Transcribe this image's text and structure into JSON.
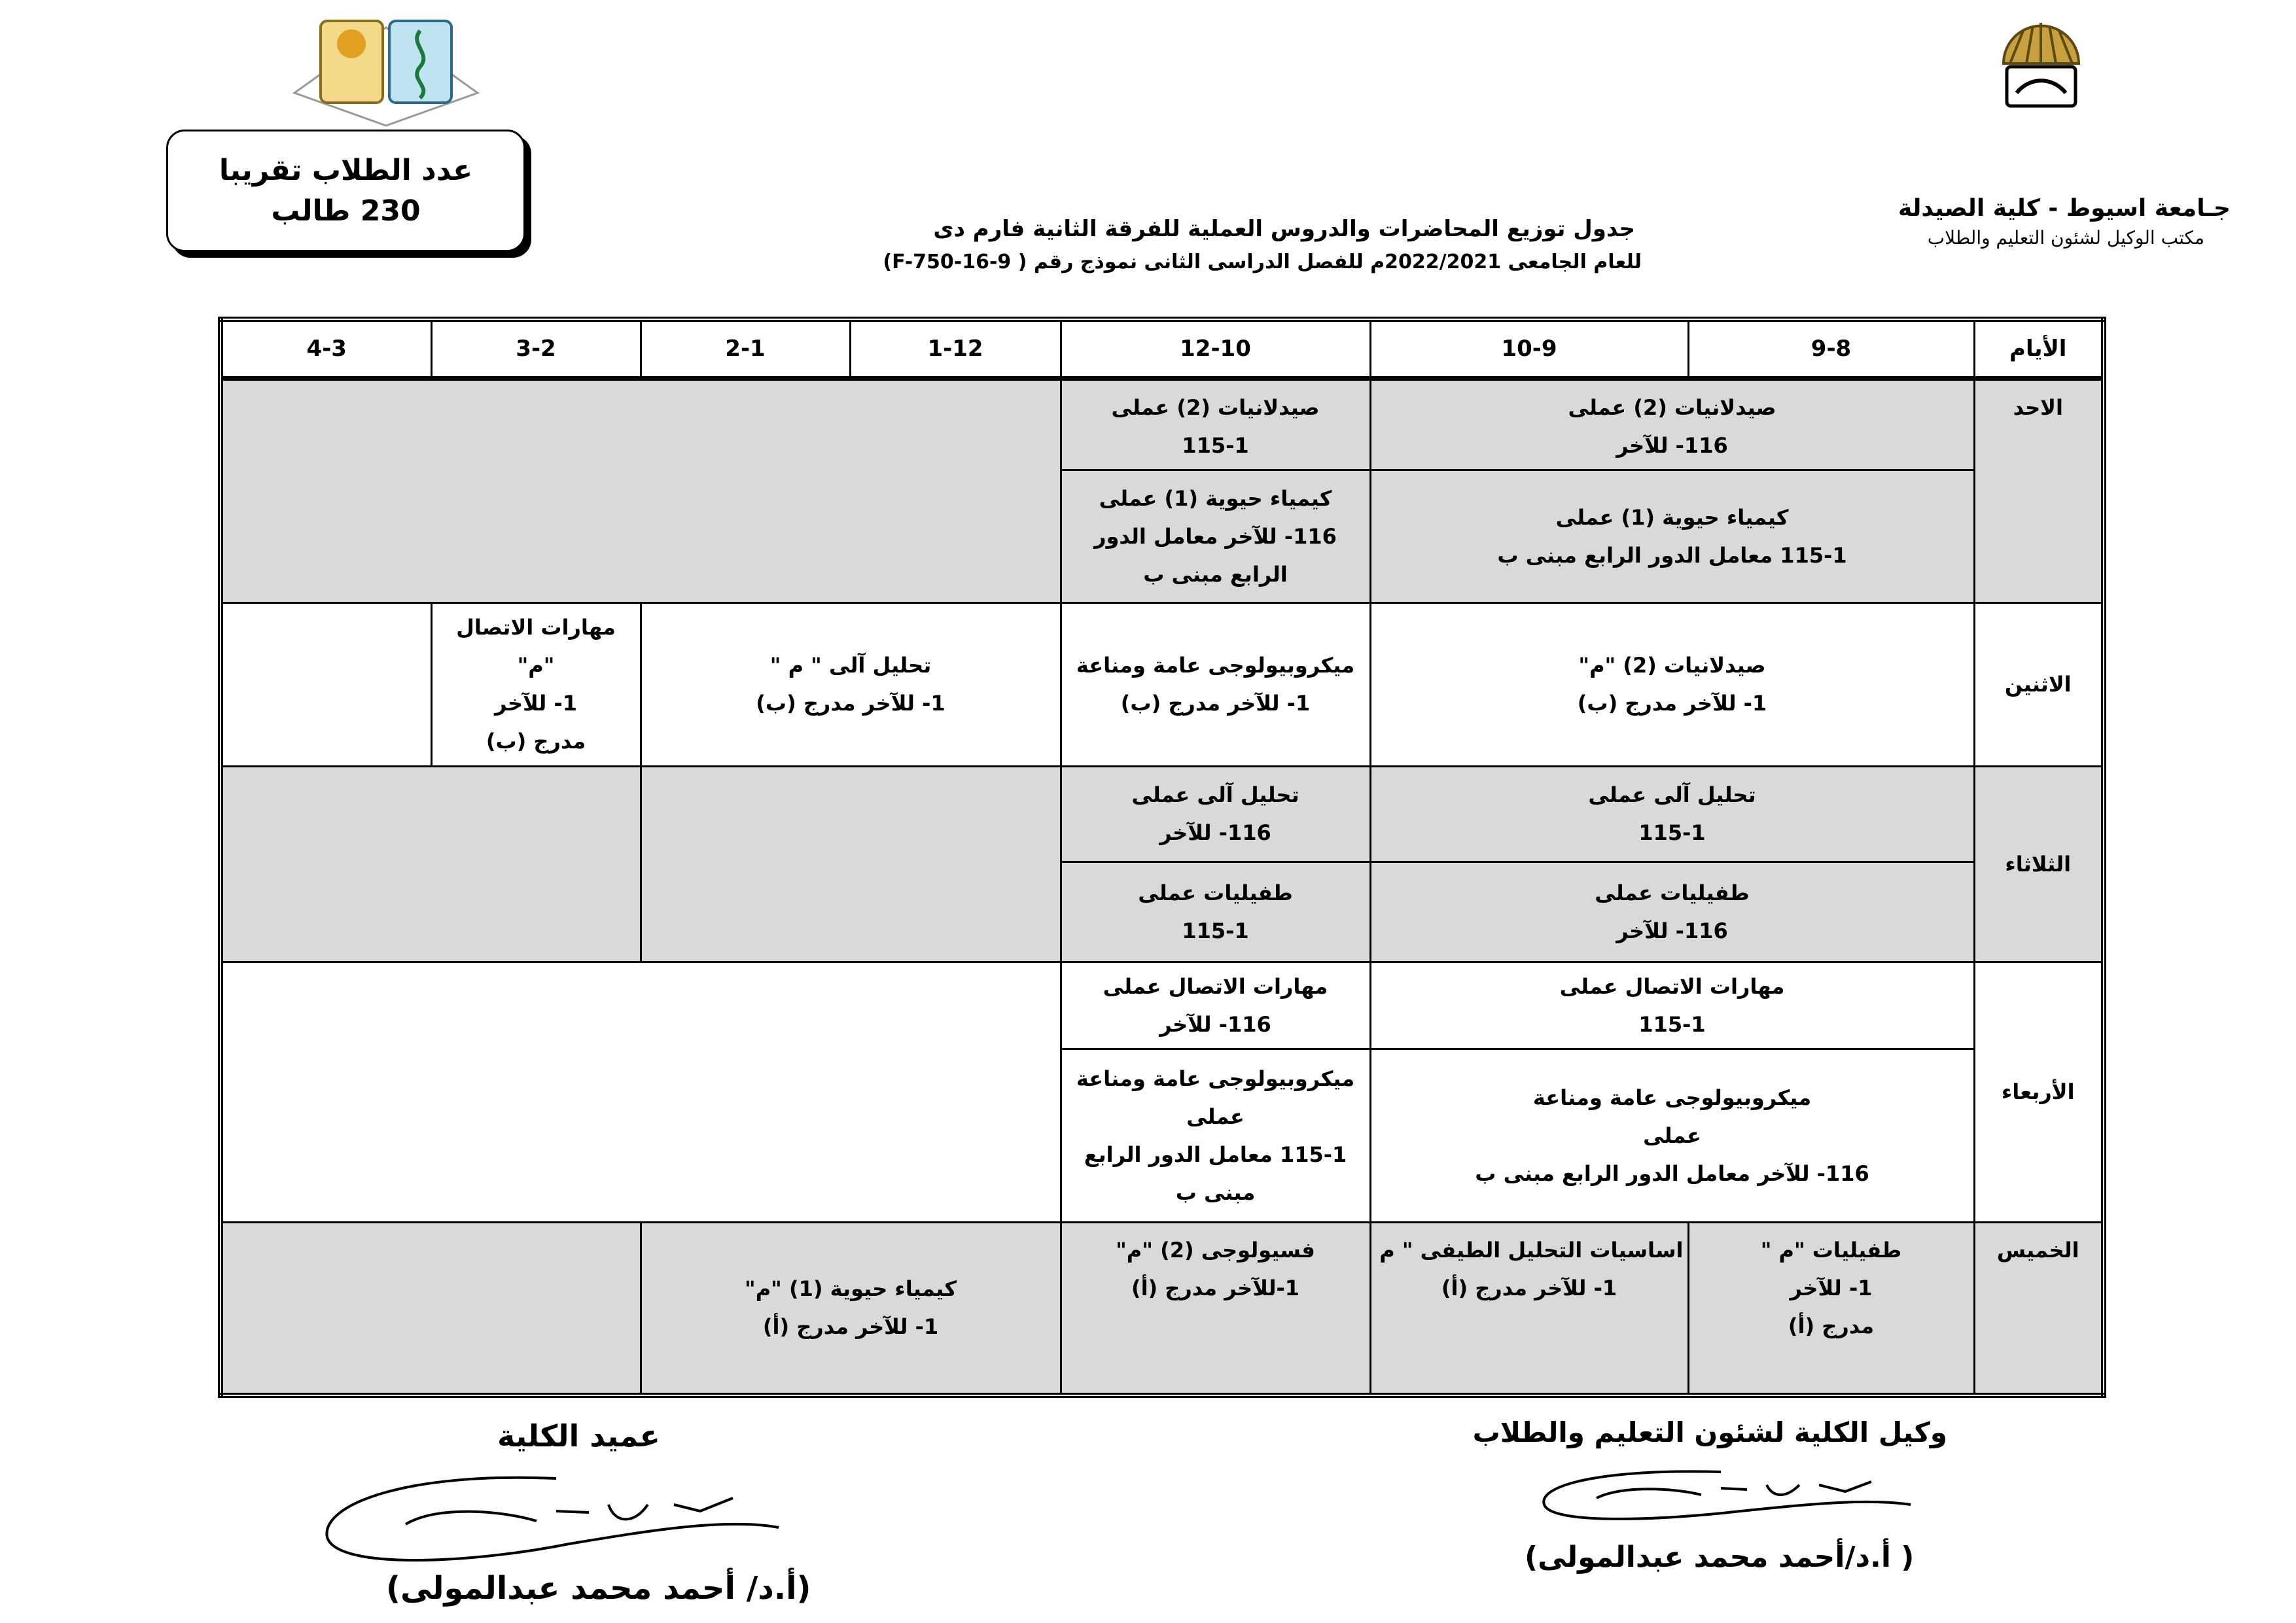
{
  "header": {
    "right_title": "جـامعة اسيوط - كلية الصيدلة",
    "right_subtitle": "مكتب الوكيل لشئون التعليم والطلاب",
    "title": "جدول توزيع المحاضرات والدروس العملية للفرقة الثانية فارم دى",
    "subtitle": "للعام الجامعى 2022/2021م للفصل الدراسى الثانى نموذج رقم ( F-750-16-9)",
    "student_count": "عدد الطلاب تقريبا 230 طالب"
  },
  "table": {
    "header": [
      "الأيام",
      "9-8",
      "10-9",
      "12-10",
      "1-12",
      "2-1",
      "3-2",
      "4-3"
    ],
    "rows": [
      {
        "day": "الاحد",
        "slots": [
          {
            "lines": [
              "صيدلانيات (2) عملى",
              "116- للآخر"
            ]
          },
          {
            "lines": [
              "صيدلانيات (2) عملى",
              "115-1"
            ]
          },
          {
            "lines": [
              "كيمياء حيوية (1) عملى",
              "115-1 معامل الدور الرابع مبنى ب"
            ]
          },
          {
            "lines": [
              "كيمياء حيوية (1) عملى",
              "116- للآخر معامل الدور",
              "الرابع مبنى ب"
            ]
          }
        ]
      },
      {
        "day": "الاثنين",
        "slots": [
          {
            "lines": [
              "صيدلانيات (2) \"م\"",
              "1- للآخر مدرج (ب)"
            ]
          },
          {
            "lines": [
              "ميكروبيولوجى عامة ومناعة",
              "1- للآخر مدرج (ب)"
            ]
          },
          {
            "lines": [
              "تحليل آلى \" م \"",
              "1- للآخر مدرج (ب)"
            ]
          },
          {
            "lines": [
              "مهارات الاتصال",
              "\"م\"",
              "1- للآخر",
              "مدرج (ب)"
            ]
          }
        ]
      },
      {
        "day": "الثلاثاء",
        "slots": [
          {
            "lines": [
              "تحليل آلى عملى",
              "115-1"
            ]
          },
          {
            "lines": [
              "تحليل آلى عملى",
              "116- للآخر"
            ]
          },
          {
            "lines": [
              "طفيليات عملى",
              "116- للآخر"
            ]
          },
          {
            "lines": [
              "طفيليات عملى",
              "115-1"
            ]
          }
        ]
      },
      {
        "day": "الأربعاء",
        "slots": [
          {
            "lines": [
              "مهارات الاتصال عملى",
              "115-1"
            ]
          },
          {
            "lines": [
              "مهارات الاتصال عملى",
              "116- للآخر"
            ]
          },
          {
            "lines": [
              "ميكروبيولوجى عامة ومناعة",
              "عملى",
              "116- للآخر معامل الدور الرابع مبنى ب"
            ]
          },
          {
            "lines": [
              "ميكروبيولوجى عامة ومناعة",
              "عملى",
              "115-1 معامل الدور الرابع",
              "مبنى ب"
            ]
          }
        ]
      },
      {
        "day": "الخميس",
        "slots": [
          {
            "lines": [
              "طفيليات \"م \"",
              "1-   للآخر",
              "مدرج (أ)"
            ]
          },
          {
            "lines": [
              "اساسيات التحليل الطيفى \" م \"",
              "1- للآخر مدرج (أ)"
            ]
          },
          {
            "lines": [
              "فسيولوجى (2) \"م\"",
              "1-للآخر مدرج (أ)"
            ]
          },
          {
            "lines": [
              "كيمياء  حيوية (1) \"م\"",
              "1- للآخر مدرج (أ)"
            ]
          }
        ]
      }
    ]
  },
  "signatures": {
    "left_title": "عميد الكلية",
    "left_name": "(أ.د/ أحمد محمد عبدالمولى)",
    "right_title": "وكيل الكلية لشئون التعليم والطلاب",
    "right_name": "( أ.د/أحمد محمد عبدالمولى)"
  }
}
